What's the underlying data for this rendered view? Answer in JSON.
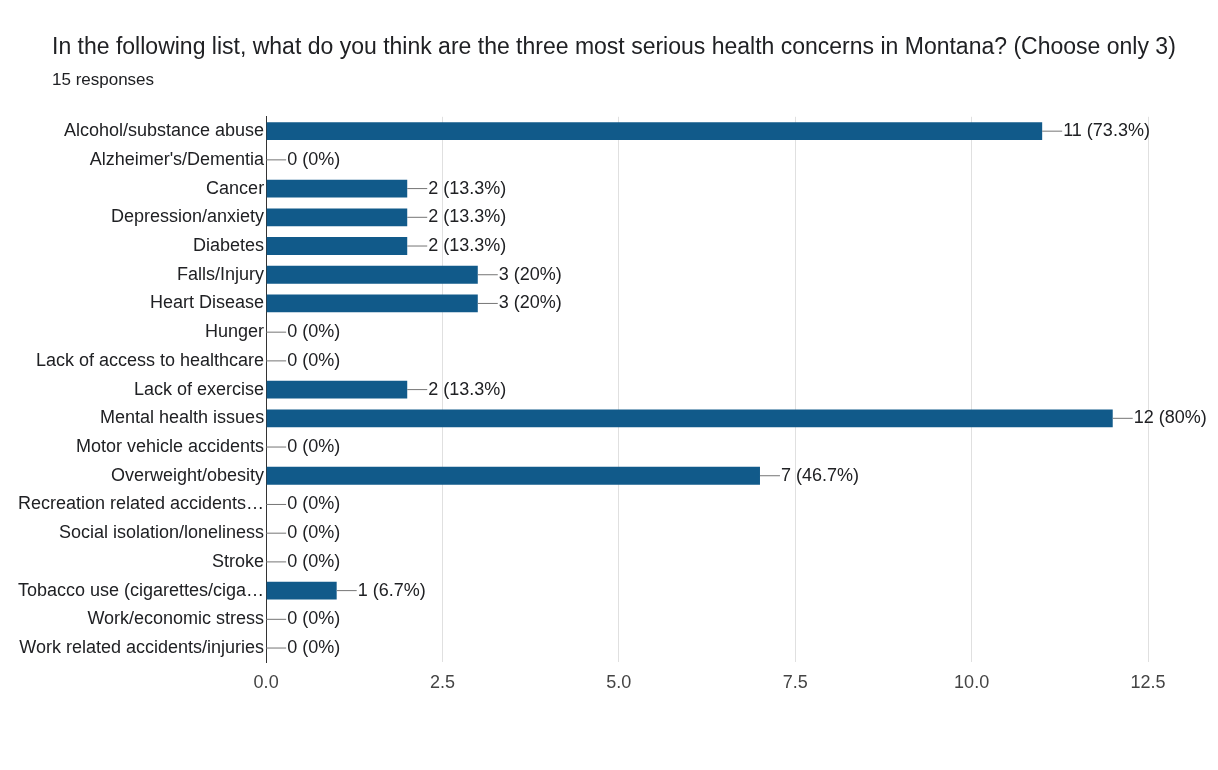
{
  "chart_data": {
    "type": "bar",
    "orientation": "horizontal",
    "title": "In the following list, what do you think are the three most serious health concerns in Montana? (Choose only 3)",
    "subtitle": "15 responses",
    "categories": [
      "Alcohol/substance abuse",
      "Alzheimer's/Dementia",
      "Cancer",
      "Depression/anxiety",
      "Diabetes",
      "Falls/Injury",
      "Heart Disease",
      "Hunger",
      "Lack of access to healthcare",
      "Lack of exercise",
      "Mental health issues",
      "Motor vehicle accidents",
      "Overweight/obesity",
      "Recreation related accidents…",
      "Social isolation/loneliness",
      "Stroke",
      "Tobacco use (cigarettes/ciga…",
      "Work/economic stress",
      "Work related accidents/injuries"
    ],
    "values": [
      11,
      0,
      2,
      2,
      2,
      3,
      3,
      0,
      0,
      2,
      12,
      0,
      7,
      0,
      0,
      0,
      1,
      0,
      0
    ],
    "value_labels": [
      "11 (73.3%)",
      "0 (0%)",
      "2 (13.3%)",
      "2 (13.3%)",
      "2 (13.3%)",
      "3 (20%)",
      "3 (20%)",
      "0 (0%)",
      "0 (0%)",
      "2 (13.3%)",
      "12 (80%)",
      "0 (0%)",
      "7 (46.7%)",
      "0 (0%)",
      "0 (0%)",
      "0 (0%)",
      "1 (6.7%)",
      "0 (0%)",
      "0 (0%)"
    ],
    "color": "#115a8a",
    "xlim": [
      0,
      12.5
    ],
    "xticks": [
      {
        "value": 0,
        "label": "0.0"
      },
      {
        "value": 2.5,
        "label": "2.5"
      },
      {
        "value": 5,
        "label": "5.0"
      },
      {
        "value": 7.5,
        "label": "7.5"
      },
      {
        "value": 10,
        "label": "10.0"
      },
      {
        "value": 12.5,
        "label": "12.5"
      }
    ],
    "grid": "x",
    "legend": false
  }
}
